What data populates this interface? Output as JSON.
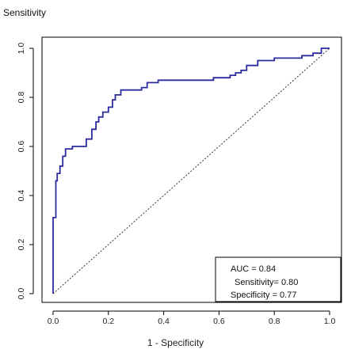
{
  "chart_data": {
    "type": "line",
    "title": "Sensitivity",
    "xlabel": "1 - Specificity",
    "ylabel": "",
    "xlim": [
      0.0,
      1.0
    ],
    "ylim": [
      0.0,
      1.0
    ],
    "xticks": [
      "0.0",
      "0.2",
      "0.4",
      "0.6",
      "0.8",
      "1.0"
    ],
    "yticks": [
      "0.0",
      "0.2",
      "0.4",
      "0.6",
      "0.8",
      "1.0"
    ],
    "grid": false,
    "series": [
      {
        "color": "#2b2ba0",
        "style": "solid",
        "step": true,
        "x": [
          0.0,
          0.0,
          0.01,
          0.01,
          0.015,
          0.015,
          0.025,
          0.025,
          0.035,
          0.035,
          0.045,
          0.045,
          0.07,
          0.07,
          0.12,
          0.12,
          0.14,
          0.14,
          0.155,
          0.155,
          0.165,
          0.165,
          0.18,
          0.18,
          0.2,
          0.2,
          0.215,
          0.215,
          0.225,
          0.225,
          0.245,
          0.245,
          0.32,
          0.32,
          0.34,
          0.34,
          0.38,
          0.38,
          0.58,
          0.58,
          0.64,
          0.64,
          0.66,
          0.66,
          0.68,
          0.68,
          0.7,
          0.7,
          0.74,
          0.74,
          0.8,
          0.8,
          0.9,
          0.9,
          0.94,
          0.94,
          0.97,
          0.97,
          1.0
        ],
        "y": [
          0.0,
          0.31,
          0.31,
          0.46,
          0.46,
          0.49,
          0.49,
          0.52,
          0.52,
          0.56,
          0.56,
          0.59,
          0.59,
          0.6,
          0.6,
          0.63,
          0.63,
          0.67,
          0.67,
          0.7,
          0.7,
          0.72,
          0.72,
          0.74,
          0.74,
          0.76,
          0.76,
          0.79,
          0.79,
          0.81,
          0.81,
          0.83,
          0.83,
          0.84,
          0.84,
          0.86,
          0.86,
          0.87,
          0.87,
          0.88,
          0.88,
          0.89,
          0.89,
          0.9,
          0.9,
          0.91,
          0.91,
          0.93,
          0.93,
          0.95,
          0.95,
          0.96,
          0.96,
          0.97,
          0.97,
          0.98,
          0.98,
          1.0,
          1.0
        ]
      },
      {
        "color": "#333333",
        "style": "dotted",
        "x": [
          0.0,
          1.0
        ],
        "y": [
          0.0,
          1.0
        ]
      }
    ],
    "annotations": {
      "lines": [
        "AUC = 0.84",
        "Sensitivity= 0.80",
        "Specificity = 0.77"
      ],
      "placement": "bottom-right"
    }
  }
}
